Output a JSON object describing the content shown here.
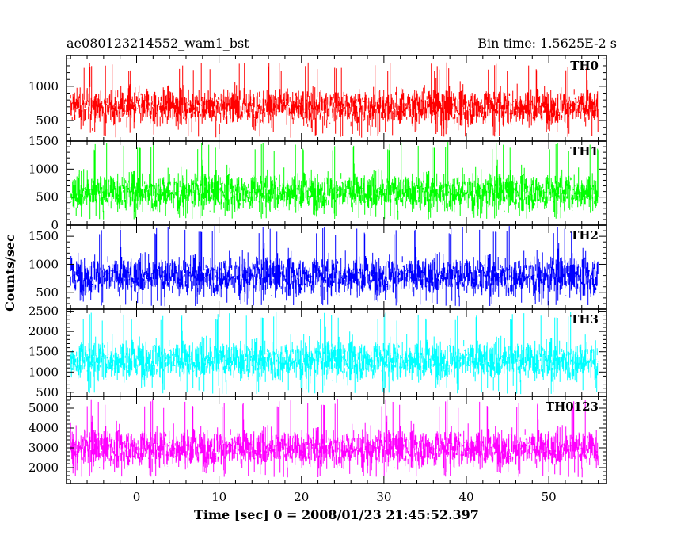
{
  "header": {
    "title": "ae080123214552_wam1_bst",
    "bin_time": "Bin time: 1.5625E-2 s"
  },
  "chart_data": {
    "type": "line",
    "xlabel": "Time [sec] 0 = 2008/01/23 21:45:52.397",
    "ylabel": "Counts/sec",
    "x_range": [
      -8.5,
      57.0
    ],
    "data_x_range": [
      -8.0,
      56.0
    ],
    "x_ticks": [
      0,
      10,
      20,
      30,
      40,
      50
    ],
    "x_tick_labels": [
      "0",
      "10",
      "20",
      "30",
      "40",
      "50"
    ],
    "panels": [
      {
        "name": "TH0",
        "color": "#ff0000",
        "ylim": [
          200,
          1450
        ],
        "ticks": [
          500,
          1000
        ],
        "tick_labels": [
          "500",
          "1000"
        ],
        "mean": 700,
        "low": 250,
        "high": 1350
      },
      {
        "name": "TH1",
        "color": "#00ff00",
        "ylim": [
          0,
          1500
        ],
        "ticks": [
          0,
          500,
          1000,
          1500
        ],
        "tick_labels": [
          "0",
          "500",
          "1000",
          "1500"
        ],
        "mean": 600,
        "low": 100,
        "high": 1500
      },
      {
        "name": "TH2",
        "color": "#0000ff",
        "ylim": [
          200,
          1700
        ],
        "ticks": [
          500,
          1000,
          1500
        ],
        "tick_labels": [
          "500",
          "1000",
          "1500"
        ],
        "mean": 800,
        "low": 250,
        "high": 1700
      },
      {
        "name": "TH3",
        "color": "#00ffff",
        "ylim": [
          400,
          2550
        ],
        "ticks": [
          500,
          1000,
          1500,
          2000,
          2500
        ],
        "tick_labels": [
          "500",
          "1000",
          "1500",
          "2000",
          "2500"
        ],
        "mean": 1300,
        "low": 450,
        "high": 2500
      },
      {
        "name": "TH0123",
        "color": "#ff00ff",
        "ylim": [
          1200,
          5600
        ],
        "ticks": [
          2000,
          3000,
          4000,
          5000
        ],
        "tick_labels": [
          "2000",
          "3000",
          "4000",
          "5000"
        ],
        "mean": 3000,
        "low": 1500,
        "high": 5500
      }
    ]
  }
}
